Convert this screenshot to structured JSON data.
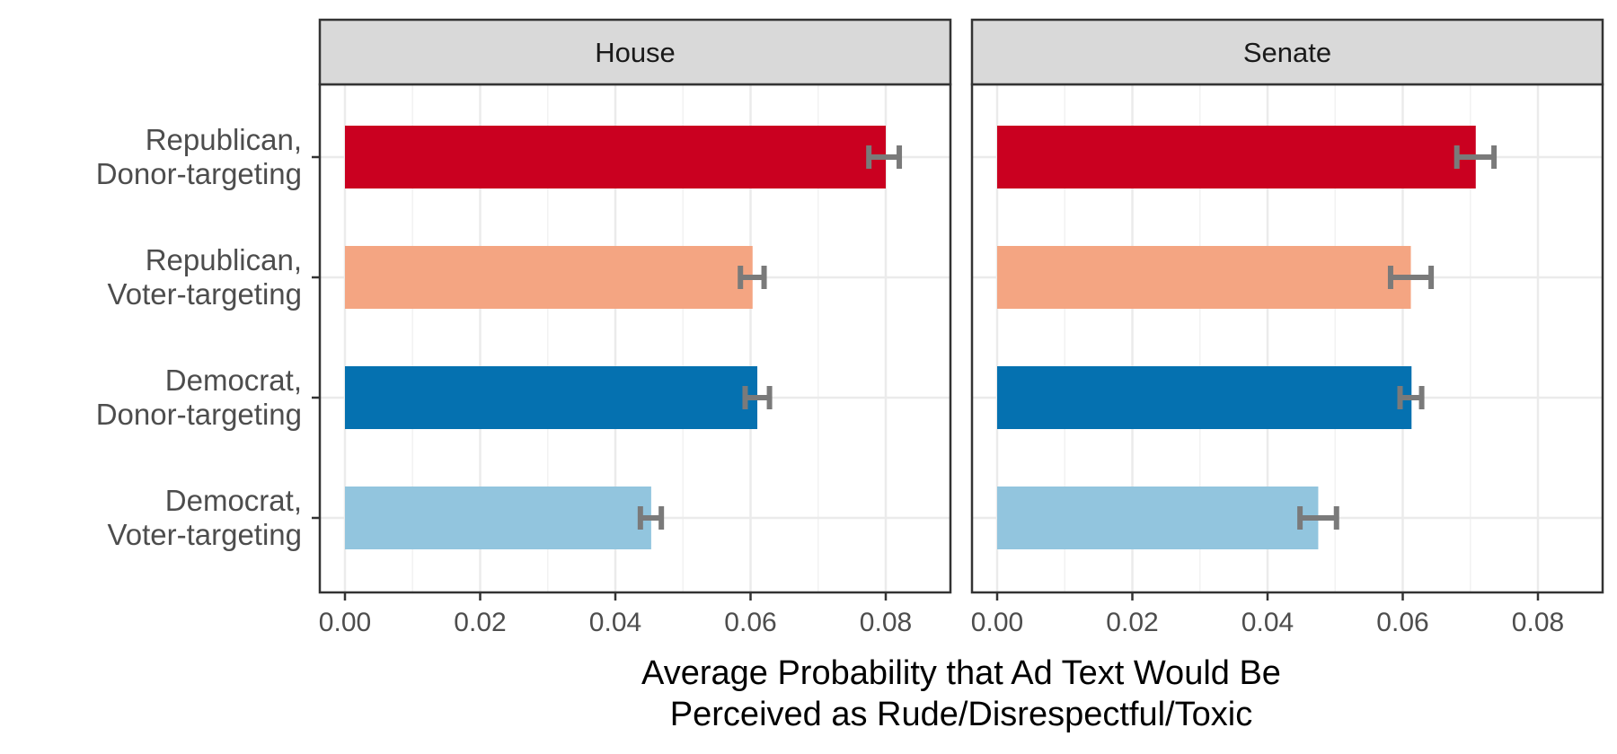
{
  "chart_data": {
    "type": "bar",
    "orientation": "horizontal",
    "xlabel": [
      "Average Probability that Ad Text Would Be",
      "Perceived as Rude/Disrespectful/Toxic"
    ],
    "ylabel": "",
    "xlim": [
      0,
      0.09
    ],
    "x_ticks": [
      "0.00",
      "0.02",
      "0.04",
      "0.06",
      "0.08"
    ],
    "x_tick_values": [
      0,
      0.02,
      0.04,
      0.06,
      0.08
    ],
    "grid": true,
    "legend": "none",
    "categories": [
      [
        "Republican,",
        "Donor-targeting"
      ],
      [
        "Republican,",
        "Voter-targeting"
      ],
      [
        "Democrat,",
        "Donor-targeting"
      ],
      [
        "Democrat,",
        "Voter-targeting"
      ]
    ],
    "colors": [
      "#CA0020",
      "#F4A582",
      "#0571B0",
      "#92C5DE"
    ],
    "error_bar_color": "#7a7a7a",
    "panels": [
      {
        "name": "House",
        "values": [
          0.08,
          0.0603,
          0.061,
          0.0453
        ],
        "error_low": [
          0.0775,
          0.0585,
          0.0592,
          0.0437
        ],
        "error_high": [
          0.082,
          0.062,
          0.0628,
          0.0468
        ]
      },
      {
        "name": "Senate",
        "values": [
          0.0708,
          0.0612,
          0.0613,
          0.0475
        ],
        "error_low": [
          0.068,
          0.0582,
          0.0596,
          0.0448
        ],
        "error_high": [
          0.0735,
          0.0642,
          0.0628,
          0.0502
        ]
      }
    ]
  }
}
